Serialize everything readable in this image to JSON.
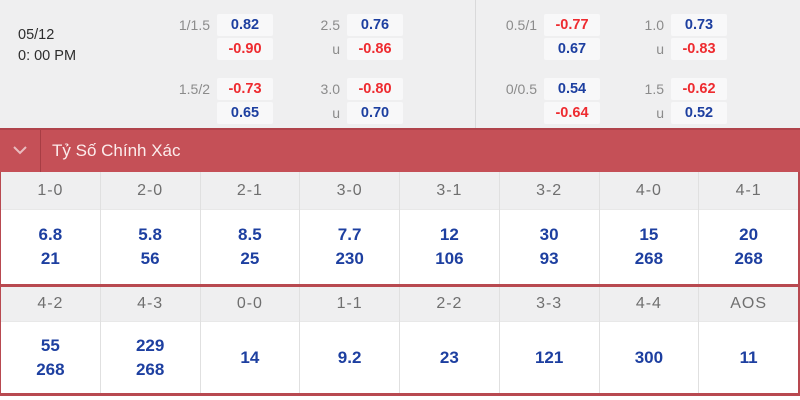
{
  "match": {
    "date": "05/12",
    "time": "0: 00 PM"
  },
  "odds_panel": {
    "groups": [
      {
        "rows": [
          {
            "label": "1/1.5",
            "value": "0.82",
            "color": "blue"
          },
          {
            "label": "",
            "value": "-0.90",
            "color": "red"
          },
          {
            "label": "1.5/2",
            "value": "-0.73",
            "color": "red"
          },
          {
            "label": "",
            "value": "0.65",
            "color": "blue"
          }
        ]
      },
      {
        "rows": [
          {
            "label": "2.5",
            "value": "0.76",
            "color": "blue"
          },
          {
            "label": "u",
            "value": "-0.86",
            "color": "red"
          },
          {
            "label": "3.0",
            "value": "-0.80",
            "color": "red"
          },
          {
            "label": "u",
            "value": "0.70",
            "color": "blue"
          }
        ]
      },
      {
        "rows": [
          {
            "label": "0.5/1",
            "value": "-0.77",
            "color": "red"
          },
          {
            "label": "",
            "value": "0.67",
            "color": "blue"
          },
          {
            "label": "0/0.5",
            "value": "0.54",
            "color": "blue"
          },
          {
            "label": "",
            "value": "-0.64",
            "color": "red"
          }
        ]
      },
      {
        "rows": [
          {
            "label": "1.0",
            "value": "0.73",
            "color": "blue"
          },
          {
            "label": "u",
            "value": "-0.83",
            "color": "red"
          },
          {
            "label": "1.5",
            "value": "-0.62",
            "color": "red"
          },
          {
            "label": "u",
            "value": "0.52",
            "color": "blue"
          }
        ]
      }
    ]
  },
  "section": {
    "title": "Tỷ Số Chính Xác",
    "chevron_icon": "chevron-down"
  },
  "score_table": {
    "rows": [
      {
        "columns": [
          {
            "score": "1-0",
            "odds": [
              "6.8",
              "21"
            ]
          },
          {
            "score": "2-0",
            "odds": [
              "5.8",
              "56"
            ]
          },
          {
            "score": "2-1",
            "odds": [
              "8.5",
              "25"
            ]
          },
          {
            "score": "3-0",
            "odds": [
              "7.7",
              "230"
            ]
          },
          {
            "score": "3-1",
            "odds": [
              "12",
              "106"
            ]
          },
          {
            "score": "3-2",
            "odds": [
              "30",
              "93"
            ]
          },
          {
            "score": "4-0",
            "odds": [
              "15",
              "268"
            ]
          },
          {
            "score": "4-1",
            "odds": [
              "20",
              "268"
            ]
          }
        ]
      },
      {
        "columns": [
          {
            "score": "4-2",
            "odds": [
              "55",
              "268"
            ]
          },
          {
            "score": "4-3",
            "odds": [
              "229",
              "268"
            ]
          },
          {
            "score": "0-0",
            "odds": [
              "14"
            ]
          },
          {
            "score": "1-1",
            "odds": [
              "9.2"
            ]
          },
          {
            "score": "2-2",
            "odds": [
              "23"
            ]
          },
          {
            "score": "3-3",
            "odds": [
              "121"
            ]
          },
          {
            "score": "4-4",
            "odds": [
              "300"
            ]
          },
          {
            "score": "AOS",
            "odds": [
              "11"
            ]
          }
        ]
      }
    ]
  },
  "colors": {
    "section_bar": "#c55057",
    "section_bar_border": "#b0434b",
    "table_border_red": "#b84950",
    "odds_blue": "#1d3fa0",
    "odds_red": "#ee2b30",
    "panel_bg": "#efeff0"
  }
}
